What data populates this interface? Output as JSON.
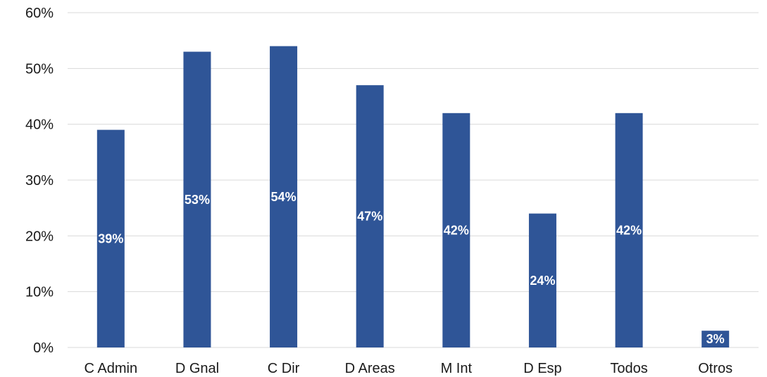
{
  "chart_data": {
    "type": "bar",
    "title": "",
    "xlabel": "",
    "ylabel": "",
    "categories": [
      "C Admin",
      "D Gnal",
      "C Dir",
      "D Areas",
      "M Int",
      "D Esp",
      "Todos",
      "Otros"
    ],
    "values": [
      39,
      53,
      54,
      47,
      42,
      24,
      42,
      3
    ],
    "value_labels": [
      "39%",
      "53%",
      "54%",
      "47%",
      "42%",
      "24%",
      "42%",
      "3%"
    ],
    "ylim": [
      0,
      60
    ],
    "yticks": [
      0,
      10,
      20,
      30,
      40,
      50,
      60
    ],
    "ytick_labels": [
      "0%",
      "10%",
      "20%",
      "30%",
      "40%",
      "50%",
      "60%"
    ],
    "grid": true,
    "legend": "none",
    "bar_color": "#2f5597",
    "label_color": "#ffffff"
  }
}
